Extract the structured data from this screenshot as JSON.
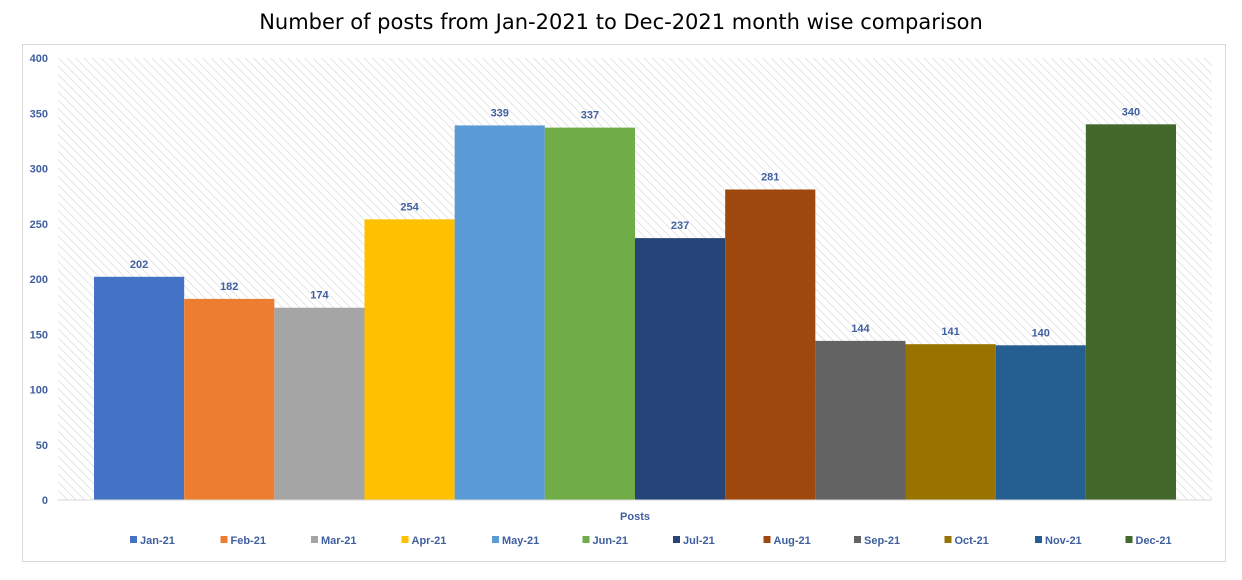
{
  "chart_data": {
    "type": "bar",
    "title": "Number of posts from Jan-2021  to Dec-2021 month wise comparison",
    "xlabel": "Posts",
    "ylabel": "",
    "ylim": [
      0,
      400
    ],
    "yticks": [
      0,
      50,
      100,
      150,
      200,
      250,
      300,
      350,
      400
    ],
    "categories": [
      "Posts"
    ],
    "grid": false,
    "legend_position": "bottom",
    "series": [
      {
        "name": "Jan-21",
        "values": [
          202
        ],
        "color": "#4472c4"
      },
      {
        "name": "Feb-21",
        "values": [
          182
        ],
        "color": "#ed7d31"
      },
      {
        "name": "Mar-21",
        "values": [
          174
        ],
        "color": "#a5a5a5"
      },
      {
        "name": "Apr-21",
        "values": [
          254
        ],
        "color": "#ffc000"
      },
      {
        "name": "May-21",
        "values": [
          339
        ],
        "color": "#5b9bd5"
      },
      {
        "name": "Jun-21",
        "values": [
          337
        ],
        "color": "#70ad47"
      },
      {
        "name": "Jul-21",
        "values": [
          237
        ],
        "color": "#264478"
      },
      {
        "name": "Aug-21",
        "values": [
          281
        ],
        "color": "#9e480e"
      },
      {
        "name": "Sep-21",
        "values": [
          144
        ],
        "color": "#636363"
      },
      {
        "name": "Oct-21",
        "values": [
          141
        ],
        "color": "#997300"
      },
      {
        "name": "Nov-21",
        "values": [
          140
        ],
        "color": "#255e91"
      },
      {
        "name": "Dec-21",
        "values": [
          340
        ],
        "color": "#43682b"
      }
    ]
  }
}
